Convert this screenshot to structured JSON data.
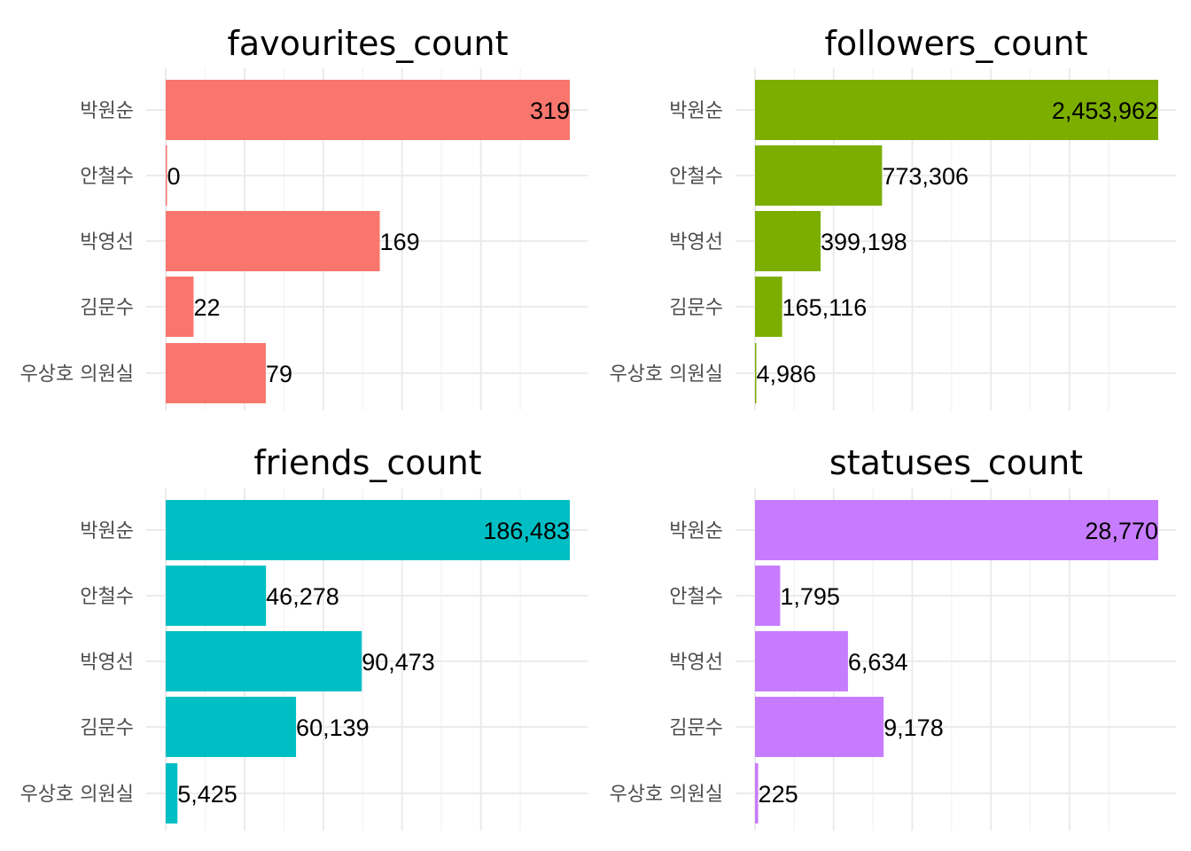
{
  "chart_data": [
    {
      "type": "bar",
      "orientation": "horizontal",
      "title": "favourites_count",
      "categories": [
        "박원순",
        "안철수",
        "박영선",
        "김문수",
        "우상호 의원실"
      ],
      "values": [
        319,
        0,
        169,
        22,
        79
      ],
      "value_labels": [
        "319",
        "0",
        "169",
        "22",
        "79"
      ],
      "xlim": [
        0,
        319
      ],
      "color": "#F8766D",
      "grid": true
    },
    {
      "type": "bar",
      "orientation": "horizontal",
      "title": "followers_count",
      "categories": [
        "박원순",
        "안철수",
        "박영선",
        "김문수",
        "우상호 의원실"
      ],
      "values": [
        2453962,
        773306,
        399198,
        165116,
        4986
      ],
      "value_labels": [
        "2,453,962",
        "773,306",
        "399,198",
        "165,116",
        "4,986"
      ],
      "xlim": [
        0,
        2453962
      ],
      "color": "#7CAE00",
      "grid": true
    },
    {
      "type": "bar",
      "orientation": "horizontal",
      "title": "friends_count",
      "categories": [
        "박원순",
        "안철수",
        "박영선",
        "김문수",
        "우상호 의원실"
      ],
      "values": [
        186483,
        46278,
        90473,
        60139,
        5425
      ],
      "value_labels": [
        "186,483",
        "46,278",
        "90,473",
        "60,139",
        "5,425"
      ],
      "xlim": [
        0,
        186483
      ],
      "color": "#00BFC4",
      "grid": true
    },
    {
      "type": "bar",
      "orientation": "horizontal",
      "title": "statuses_count",
      "categories": [
        "박원순",
        "안철수",
        "박영선",
        "김문수",
        "우상호 의원실"
      ],
      "values": [
        28770,
        1795,
        6634,
        9178,
        225
      ],
      "value_labels": [
        "28,770",
        "1,795",
        "6,634",
        "9,178",
        "225"
      ],
      "xlim": [
        0,
        28770
      ],
      "color": "#C77CFF",
      "grid": true
    }
  ]
}
